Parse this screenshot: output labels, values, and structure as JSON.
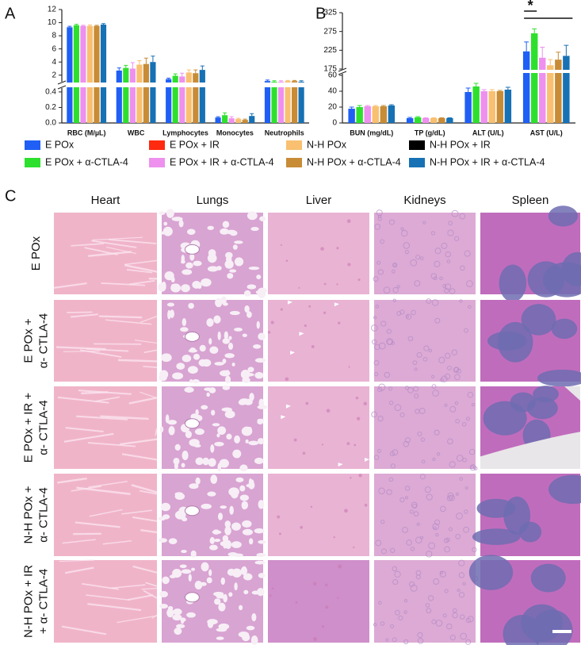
{
  "chart_data": [
    {
      "type": "bar",
      "panel": "A",
      "categories": [
        "RBC (M/µL)",
        "WBC",
        "Lymphocytes",
        "Monocytes",
        "Neutrophils"
      ],
      "y_segments": [
        {
          "ylim": [
            0,
            0.45
          ],
          "yticks": [
            {
              "value": 0,
              "label": "0.0"
            },
            {
              "value": 0.2,
              "label": "0.2"
            },
            {
              "value": 0.4,
              "label": "0.4"
            }
          ]
        },
        {
          "ylim": [
            1,
            12
          ],
          "yticks": [
            2,
            4,
            6,
            8,
            10,
            12
          ]
        }
      ],
      "series": [
        {
          "name": "E POx",
          "values": [
            9.3,
            2.7,
            1.4,
            0.07,
            1.1
          ],
          "errors": [
            0.15,
            0.4,
            0.15,
            0.01,
            0.15
          ]
        },
        {
          "name": "E POx + α-CTLA-4",
          "values": [
            9.6,
            3.1,
            1.9,
            0.1,
            1.0
          ],
          "errors": [
            0.15,
            0.4,
            0.3,
            0.03,
            0.15
          ]
        },
        {
          "name": "E POx + IR + α-CTLA-4",
          "values": [
            9.5,
            3.0,
            1.8,
            0.06,
            1.0
          ],
          "errors": [
            0.1,
            0.9,
            0.5,
            0.02,
            0.15
          ]
        },
        {
          "name": "N-H POx",
          "values": [
            9.5,
            3.6,
            2.4,
            0.05,
            1.1
          ],
          "errors": [
            0.15,
            0.6,
            0.4,
            0.01,
            0.1
          ]
        },
        {
          "name": "N-H POx + α-CTLA-4",
          "values": [
            9.5,
            3.7,
            2.3,
            0.04,
            1.1
          ],
          "errors": [
            0.1,
            0.9,
            0.5,
            0.01,
            0.1
          ]
        },
        {
          "name": "N-H POx + IR + α-CTLA-4",
          "values": [
            9.7,
            4.0,
            2.8,
            0.09,
            1.0
          ],
          "errors": [
            0.15,
            0.9,
            0.6,
            0.03,
            0.15
          ]
        }
      ]
    },
    {
      "type": "bar",
      "panel": "B",
      "categories": [
        "BUN (mg/dL)",
        "TP (g/dL)",
        "ALT (U/L)",
        "AST (U/L)"
      ],
      "y_segments": [
        {
          "ylim": [
            0,
            62
          ],
          "yticks": [
            0,
            20,
            40,
            60
          ]
        },
        {
          "ylim": [
            175,
            325
          ],
          "yticks": [
            175,
            225,
            275,
            325
          ]
        }
      ],
      "annotation": "*",
      "series": [
        {
          "name": "E POx",
          "values": [
            18,
            6,
            39,
            222
          ],
          "errors": [
            2,
            1,
            5,
            25
          ]
        },
        {
          "name": "E POx + α-CTLA-4",
          "values": [
            20,
            7,
            46,
            270
          ],
          "errors": [
            2,
            1,
            4,
            12
          ]
        },
        {
          "name": "E POx + IR + α-CTLA-4",
          "values": [
            21,
            6,
            40,
            205
          ],
          "errors": [
            1,
            0.5,
            2,
            28
          ]
        },
        {
          "name": "N-H POx",
          "values": [
            21,
            6,
            40,
            185
          ],
          "errors": [
            1,
            0.5,
            2,
            15
          ]
        },
        {
          "name": "N-H POx + α-CTLA-4",
          "values": [
            21,
            6,
            40,
            200
          ],
          "errors": [
            1,
            0.5,
            1,
            20
          ]
        },
        {
          "name": "N-H POx + IR + α-CTLA-4",
          "values": [
            22,
            6,
            42,
            210
          ],
          "errors": [
            1,
            0.5,
            3,
            28
          ]
        }
      ]
    }
  ],
  "legend": [
    {
      "name": "E POx",
      "color": "#1f5ff5"
    },
    {
      "name": "E POx + IR",
      "color": "#ff2a10"
    },
    {
      "name": "N-H POx",
      "color": "#f8c070"
    },
    {
      "name": "N-H POx + IR",
      "color": "#000000"
    },
    {
      "name": "E POx + α-CTLA-4",
      "color": "#2ee02e"
    },
    {
      "name": "E POx + IR + α-CTLA-4",
      "color": "#ee90ee"
    },
    {
      "name": "N-H POx + α-CTLA-4",
      "color": "#c88c36"
    },
    {
      "name": "N-H POx + IR + α-CTLA-4",
      "color": "#1771b5"
    }
  ],
  "panel_c": {
    "label": "C",
    "columns": [
      "Heart",
      "Lungs",
      "Liver",
      "Kidneys",
      "Spleen"
    ],
    "rows": [
      [
        "E POx"
      ],
      [
        "E POx +",
        "α- CTLA-4"
      ],
      [
        "E POx + IR +",
        "α- CTLA-4"
      ],
      [
        "N-H POx +",
        "α- CTLA-4"
      ],
      [
        "N-H POx + IR",
        "+ α- CTLA-4"
      ]
    ]
  }
}
